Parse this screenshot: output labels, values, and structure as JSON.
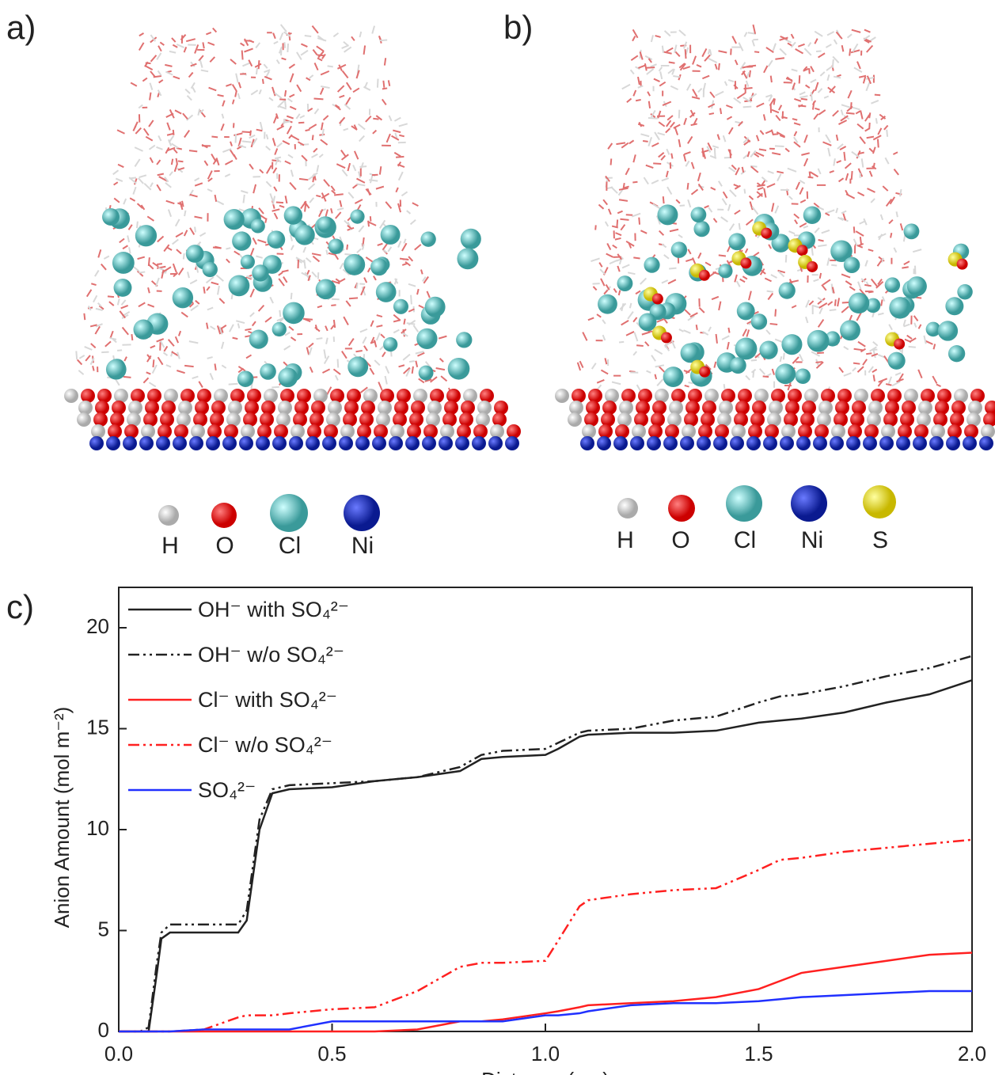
{
  "figure": {
    "panel_labels": [
      "a)",
      "b)",
      "c)"
    ],
    "legend_a": [
      "H",
      "O",
      "Cl",
      "Ni"
    ],
    "legend_b": [
      "H",
      "O",
      "Cl",
      "Ni",
      "S"
    ]
  },
  "chart_data": {
    "type": "line",
    "xlabel": "Distance (nm)",
    "ylabel": "Anion Amount (mol m⁻²)",
    "xlim": [
      0,
      2
    ],
    "ylim": [
      0,
      22
    ],
    "xticks": [
      {
        "value": 0,
        "label": "0.0"
      },
      0.5,
      {
        "value": 1,
        "label": "1.0"
      },
      1.5,
      {
        "value": 2,
        "label": "2.0"
      }
    ],
    "yticks": [
      0,
      5,
      10,
      15,
      20
    ],
    "legend": "upper-left",
    "x": [
      0,
      0.05,
      0.07,
      0.09,
      0.1,
      0.12,
      0.2,
      0.28,
      0.3,
      0.33,
      0.36,
      0.4,
      0.5,
      0.6,
      0.7,
      0.8,
      0.85,
      0.9,
      1.0,
      1.03,
      1.08,
      1.1,
      1.2,
      1.3,
      1.4,
      1.5,
      1.55,
      1.6,
      1.7,
      1.8,
      1.9,
      2.0
    ],
    "series": [
      {
        "name": "OH⁻ with SO₄²⁻",
        "color": "#222222",
        "dash": "solid",
        "values": [
          0,
          0,
          0,
          3,
          4.6,
          4.9,
          4.9,
          4.9,
          5.5,
          10,
          11.8,
          12.0,
          12.1,
          12.4,
          12.6,
          12.9,
          13.5,
          13.6,
          13.7,
          14.0,
          14.6,
          14.7,
          14.8,
          14.8,
          14.9,
          15.3,
          15.4,
          15.5,
          15.8,
          16.3,
          16.7,
          17.4
        ]
      },
      {
        "name": "OH⁻ w/o SO₄²⁻",
        "color": "#222222",
        "dash": "dashdot",
        "values": [
          0,
          0,
          0.2,
          3.5,
          4.9,
          5.3,
          5.3,
          5.3,
          6,
          10.5,
          12.0,
          12.2,
          12.3,
          12.4,
          12.6,
          13.1,
          13.7,
          13.9,
          14.0,
          14.3,
          14.8,
          14.9,
          15.0,
          15.4,
          15.6,
          16.3,
          16.6,
          16.7,
          17.1,
          17.6,
          18.0,
          18.6
        ]
      },
      {
        "name": "Cl⁻ with SO₄²⁻",
        "color": "#ff2020",
        "dash": "solid",
        "values": [
          0,
          0,
          0,
          0,
          0,
          0,
          0,
          0,
          0,
          0,
          0,
          0,
          0,
          0,
          0.1,
          0.5,
          0.5,
          0.6,
          0.9,
          1.0,
          1.2,
          1.3,
          1.4,
          1.5,
          1.7,
          2.1,
          2.5,
          2.9,
          3.2,
          3.5,
          3.8,
          3.9
        ]
      },
      {
        "name": "Cl⁻ w/o SO₄²⁻",
        "color": "#ff2020",
        "dash": "dashdot",
        "values": [
          0,
          0,
          0,
          0,
          0,
          0,
          0.1,
          0.7,
          0.8,
          0.8,
          0.8,
          0.9,
          1.1,
          1.2,
          2.0,
          3.2,
          3.4,
          3.4,
          3.5,
          4.5,
          6.2,
          6.5,
          6.8,
          7.0,
          7.1,
          8.0,
          8.5,
          8.6,
          8.9,
          9.1,
          9.3,
          9.5
        ]
      },
      {
        "name": "SO₄²⁻",
        "color": "#2030ff",
        "dash": "solid",
        "values": [
          0,
          0,
          0,
          0,
          0,
          0,
          0.1,
          0.1,
          0.1,
          0.1,
          0.1,
          0.1,
          0.5,
          0.5,
          0.5,
          0.5,
          0.5,
          0.5,
          0.8,
          0.8,
          0.9,
          1.0,
          1.3,
          1.4,
          1.4,
          1.5,
          1.6,
          1.7,
          1.8,
          1.9,
          2.0,
          2.0
        ]
      }
    ]
  }
}
